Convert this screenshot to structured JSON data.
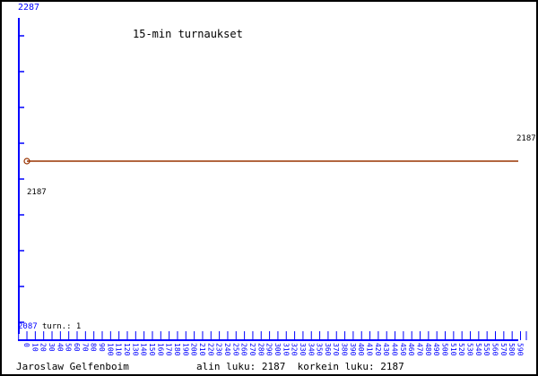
{
  "chart_data": {
    "type": "line",
    "title": "15-min turnaukset",
    "ylim": [
      2087,
      2287
    ],
    "y_top_label": "2287",
    "y_bottom_label": "2087",
    "x_ticks": [
      0,
      10,
      20,
      30,
      40,
      50,
      60,
      70,
      80,
      90,
      100,
      110,
      120,
      130,
      140,
      150,
      160,
      170,
      180,
      190,
      200,
      210,
      220,
      230,
      240,
      250,
      260,
      270,
      280,
      290,
      300,
      310,
      320,
      330,
      340,
      350,
      360,
      370,
      380,
      390,
      400,
      410,
      420,
      430,
      440,
      450,
      460,
      470,
      480,
      490,
      500,
      510,
      520,
      530,
      540,
      550,
      560,
      570,
      580,
      590
    ],
    "turn_label": "turn.: 1",
    "series": [
      {
        "values": [
          2187,
          2187
        ]
      }
    ],
    "start_label": "2187",
    "end_label": "2187",
    "grid": false,
    "colors": {
      "axis": "#0000ff",
      "line": "#993300",
      "text": "#000000"
    }
  },
  "footer": {
    "player": "Jaroslaw Gelfenboim",
    "stats": "alin luku: 2187  korkein luku: 2187"
  }
}
